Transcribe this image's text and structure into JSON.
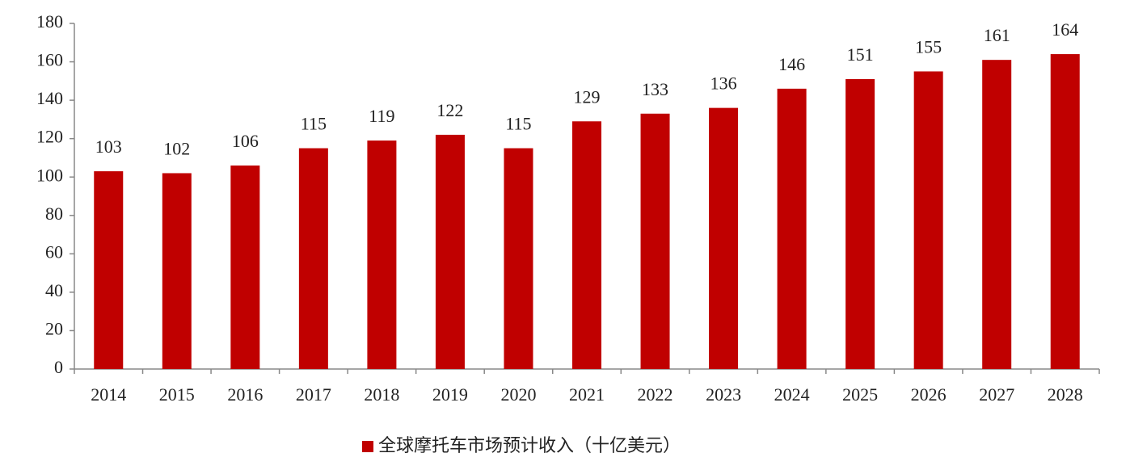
{
  "chart_data": {
    "type": "bar",
    "categories": [
      "2014",
      "2015",
      "2016",
      "2017",
      "2018",
      "2019",
      "2020",
      "2021",
      "2022",
      "2023",
      "2024",
      "2025",
      "2026",
      "2027",
      "2028"
    ],
    "series": [
      {
        "name": "全球摩托车市场预计收入（十亿美元）",
        "color": "#c00000",
        "values": [
          103,
          102,
          106,
          115,
          119,
          122,
          115,
          129,
          133,
          136,
          146,
          151,
          155,
          161,
          164
        ]
      }
    ],
    "ylim": [
      0,
      180
    ],
    "yticks": [
      0,
      20,
      40,
      60,
      80,
      100,
      120,
      140,
      160,
      180
    ],
    "grid": false,
    "legend": "bottom"
  }
}
